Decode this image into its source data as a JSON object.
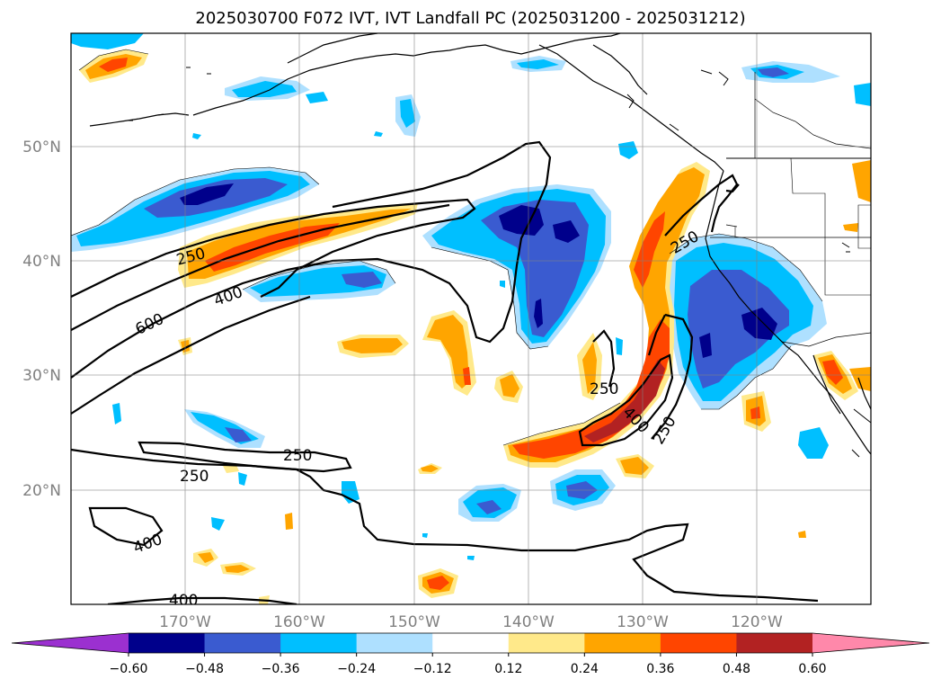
{
  "title": "2025030700 F072 IVT, IVT Landfall PC (2025031200 - 2025031212)",
  "lat_labels": [
    "50°N",
    "40°N",
    "30°N",
    "20°N"
  ],
  "lon_labels": [
    "170°W",
    "160°W",
    "150°W",
    "140°W",
    "130°W",
    "120°W"
  ],
  "contour_labels": [
    {
      "text": "250"
    },
    {
      "text": "400"
    },
    {
      "text": "600"
    },
    {
      "text": "250"
    },
    {
      "text": "250"
    },
    {
      "text": "400"
    },
    {
      "text": "250"
    },
    {
      "text": "250"
    },
    {
      "text": "250"
    },
    {
      "text": "400"
    },
    {
      "text": "400"
    }
  ],
  "colorbar": {
    "ticks": [
      "−0.60",
      "−0.48",
      "−0.36",
      "−0.24",
      "−0.12",
      "0.12",
      "0.24",
      "0.36",
      "0.48",
      "0.60"
    ],
    "colors": [
      "#9b30d0",
      "#00008b",
      "#3a5bd0",
      "#00bfff",
      "#aee0ff",
      "#ffffff",
      "#ffe98a",
      "#ffa500",
      "#ff4500",
      "#b22222",
      "#ff88aa"
    ]
  }
}
